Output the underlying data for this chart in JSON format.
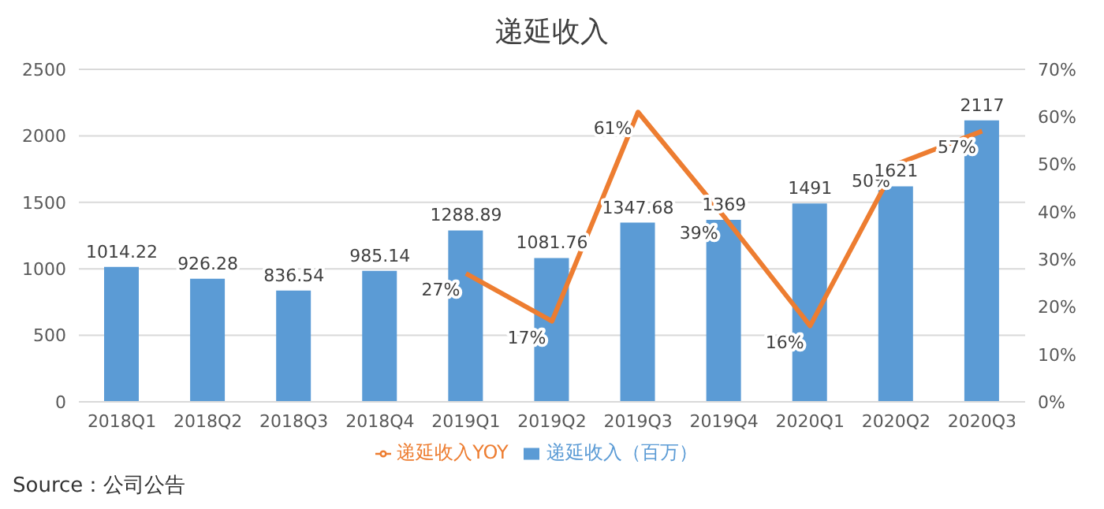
{
  "chart_data": {
    "type": "bar",
    "title": "递延收入",
    "categories": [
      "2018Q1",
      "2018Q2",
      "2018Q3",
      "2018Q4",
      "2019Q1",
      "2019Q2",
      "2019Q3",
      "2019Q4",
      "2020Q1",
      "2020Q2",
      "2020Q3"
    ],
    "series": [
      {
        "name": "递延收入（百万）",
        "color": "#5b9bd5",
        "values": [
          1014.22,
          926.28,
          836.54,
          985.14,
          1288.89,
          1081.76,
          1347.68,
          1369,
          1491,
          1621,
          2117
        ],
        "value_labels": [
          "1014.22",
          "926.28",
          "836.54",
          "985.14",
          "1288.89",
          "1081.76",
          "1347.68",
          "1369",
          "1491",
          "1621",
          "2117"
        ]
      },
      {
        "name": "递延收入YOY",
        "type": "line",
        "axis": "y2",
        "color": "#ed7d31",
        "values": [
          null,
          null,
          null,
          null,
          27,
          17,
          61,
          39,
          16,
          50,
          57
        ],
        "value_labels": [
          null,
          null,
          null,
          null,
          "27%",
          "17%",
          "61%",
          "39%",
          "16%",
          "50%",
          "57%"
        ]
      }
    ],
    "ylim": [
      0,
      2500
    ],
    "yticks": [
      0,
      500,
      1000,
      1500,
      2000,
      2500
    ],
    "y2lim": [
      0,
      70
    ],
    "y2ticks": [
      {
        "value": 0,
        "label": "0%"
      },
      {
        "value": 10,
        "label": "10%"
      },
      {
        "value": 20,
        "label": "20%"
      },
      {
        "value": 30,
        "label": "30%"
      },
      {
        "value": 40,
        "label": "40%"
      },
      {
        "value": 50,
        "label": "50%"
      },
      {
        "value": 60,
        "label": "60%"
      },
      {
        "value": 70,
        "label": "70%"
      }
    ],
    "grid": "y",
    "legend": "bottom",
    "marker": "none",
    "annotations": [
      "Source：公司公告"
    ]
  }
}
